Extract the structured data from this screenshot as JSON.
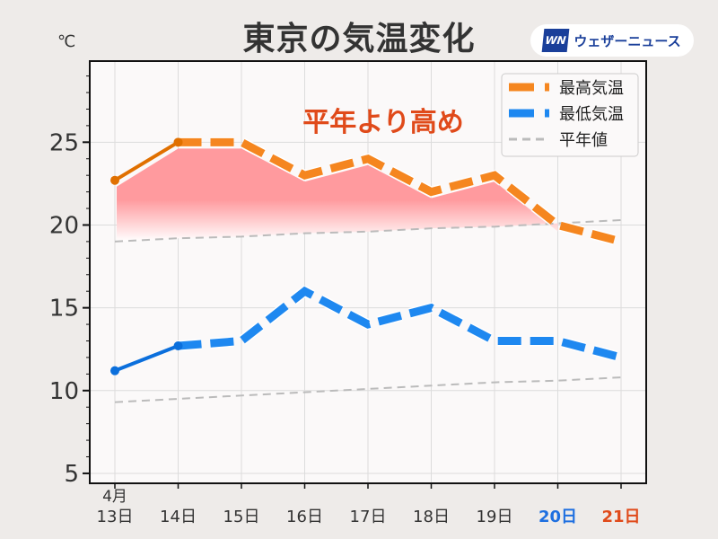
{
  "header": {
    "title": "東京の気温変化",
    "unit": "℃",
    "logo_mark": "WN",
    "logo_text": "ウェザーニュース"
  },
  "chart_data": {
    "type": "line",
    "title": "東京の気温変化",
    "ylabel": "℃",
    "annotation": "平年より高め",
    "x_month_label": "4月",
    "categories": [
      "13日",
      "14日",
      "15日",
      "16日",
      "17日",
      "18日",
      "19日",
      "20日",
      "21日"
    ],
    "category_colors": [
      "#333333",
      "#333333",
      "#333333",
      "#333333",
      "#333333",
      "#333333",
      "#333333",
      "#1e6fe0",
      "#e04a1a"
    ],
    "observed_count": 2,
    "series": [
      {
        "name": "最高気温",
        "color": "#f5861f",
        "observed_color": "#e07000",
        "values": [
          22.7,
          25,
          25,
          23,
          24,
          22,
          23,
          20,
          19
        ]
      },
      {
        "name": "最低気温",
        "color": "#1e88f0",
        "observed_color": "#0b6fdc",
        "values": [
          11.2,
          12.7,
          13,
          16,
          14,
          15,
          13,
          13,
          12
        ]
      },
      {
        "name": "平年値",
        "color": "#bbbbbb",
        "values_high": [
          19.0,
          19.2,
          19.3,
          19.5,
          19.6,
          19.8,
          19.9,
          20.1,
          20.3
        ],
        "values_low": [
          9.3,
          9.5,
          9.7,
          9.9,
          10.1,
          10.3,
          10.5,
          10.6,
          10.8
        ]
      }
    ],
    "yticks": [
      5,
      10,
      15,
      20,
      25
    ],
    "ylim": [
      4.4,
      29.9
    ],
    "grid": true,
    "legend_position": "top-right",
    "fill_color": "#ff9a9e",
    "annotation_color": "#e04a1a"
  }
}
